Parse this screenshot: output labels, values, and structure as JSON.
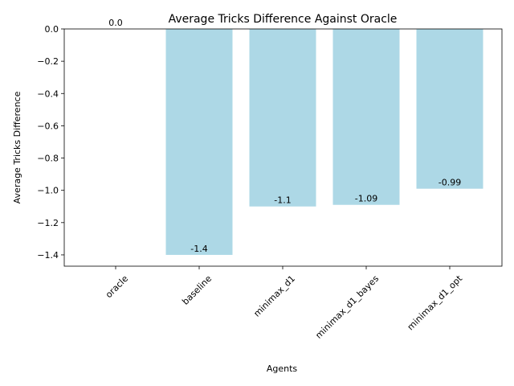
{
  "chart_data": {
    "type": "bar",
    "title": "Average Tricks Difference Against Oracle",
    "xlabel": "Agents",
    "ylabel": "Average Tricks Difference",
    "categories": [
      "oracle",
      "baseline",
      "minimax_d1",
      "minimax_d1_bayes",
      "minimax_d1_opt"
    ],
    "values": [
      0.0,
      -1.4,
      -1.1,
      -1.09,
      -0.99
    ],
    "value_labels": [
      "0.0",
      "-1.4",
      "-1.1",
      "-1.09",
      "-0.99"
    ],
    "ylim": [
      -1.47,
      0.0
    ],
    "yticks": [
      0.0,
      -0.2,
      -0.4,
      -0.6,
      -0.8,
      -1.0,
      -1.2,
      -1.4
    ],
    "ytick_labels": [
      "0.0",
      "−0.2",
      "−0.4",
      "−0.6",
      "−0.8",
      "−1.0",
      "−1.2",
      "−1.4"
    ],
    "bar_color": "#add8e6",
    "grid": false,
    "legend": "none"
  }
}
